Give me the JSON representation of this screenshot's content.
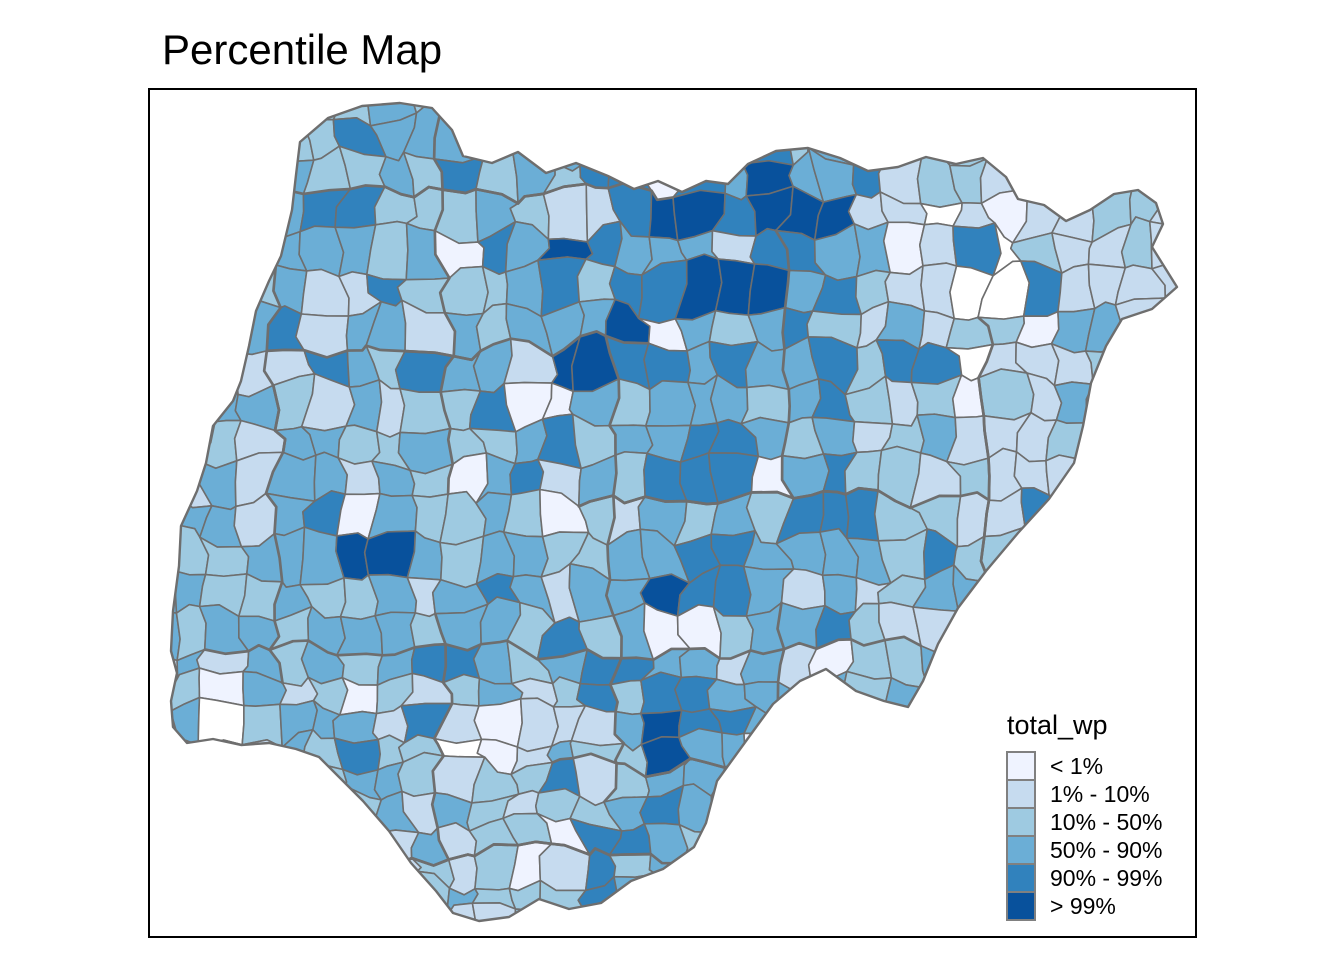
{
  "title": "Percentile Map",
  "legend": {
    "title": "total_wp",
    "classes": [
      {
        "label": "< 1%",
        "color": "#eff3ff"
      },
      {
        "label": "1% - 10%",
        "color": "#c6dbef"
      },
      {
        "label": "10% - 50%",
        "color": "#9ecae1"
      },
      {
        "label": "50% - 90%",
        "color": "#6baed6"
      },
      {
        "label": "90% - 99%",
        "color": "#3182bd"
      },
      {
        "label": "> 99%",
        "color": "#08519c"
      }
    ]
  },
  "map": {
    "border_color": "#6e6e6e",
    "outline_color": "#6e6e6e",
    "na_color": "#ffffff",
    "frame_color": "#000000",
    "background": "#ffffff"
  }
}
